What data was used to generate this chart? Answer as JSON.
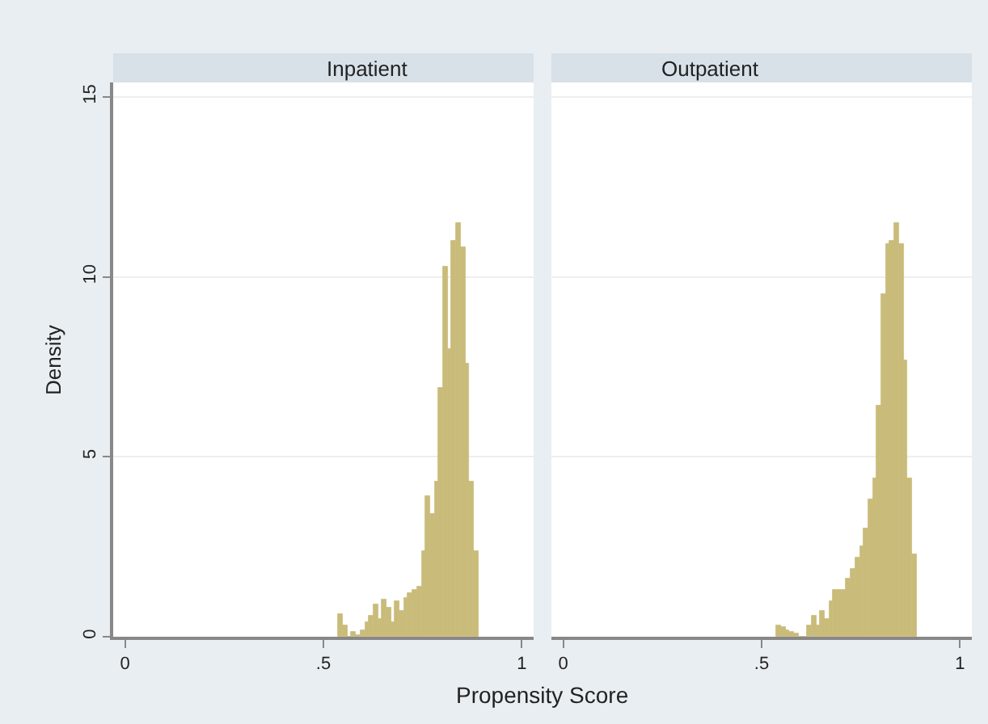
{
  "chart_data": [
    {
      "type": "histogram",
      "title": "Inpatient",
      "xlabel": "Propensity Score",
      "ylabel": "Density",
      "color": "#c9bb7a",
      "bins": [
        0.538,
        0.549,
        0.56,
        0.571,
        0.582,
        0.593,
        0.604,
        0.615,
        0.626,
        0.637,
        0.648,
        0.659,
        0.67,
        0.681,
        0.692,
        0.703,
        0.714,
        0.725,
        0.736,
        0.747,
        0.758,
        0.769,
        0.78,
        0.791,
        0.802,
        0.813,
        0.824,
        0.835,
        0.846,
        0.857,
        0.868,
        0.879,
        0.89
      ],
      "values": [
        0.65,
        0.3,
        0,
        0.15,
        0.05,
        0.2,
        0.4,
        0.6,
        0.9,
        0.5,
        1.05,
        0.8,
        0.4,
        1.0,
        0.7,
        1.1,
        1.2,
        1.3,
        1.4,
        2.4,
        3.9,
        3.4,
        4.3,
        6.9,
        10.3,
        8.0,
        11.0,
        11.5,
        10.8,
        7.6,
        4.3,
        2.4
      ],
      "xlim": [
        -0.03,
        1.03
      ],
      "xticks": [
        0,
        {
          "value": 0.5,
          "label": ".5"
        },
        1
      ],
      "ylim": [
        0,
        15.4
      ],
      "yticks": [
        0,
        5,
        10,
        15
      ],
      "grid": "y"
    },
    {
      "type": "histogram",
      "title": "Outpatient",
      "color": "#c9bb7a",
      "bins": [
        0.538,
        0.549,
        0.56,
        0.571,
        0.582,
        0.593,
        0.604,
        0.615,
        0.626,
        0.637,
        0.648,
        0.659,
        0.67,
        0.681,
        0.692,
        0.703,
        0.714,
        0.725,
        0.736,
        0.747,
        0.758,
        0.769,
        0.78,
        0.791,
        0.802,
        0.813,
        0.824,
        0.835,
        0.846,
        0.857,
        0.868,
        0.879,
        0.89
      ],
      "values": [
        0.3,
        0.25,
        0.2,
        0.15,
        0.1,
        0,
        0,
        0.3,
        0.6,
        0.3,
        0.7,
        0.5,
        1.0,
        1.3,
        1.3,
        1.3,
        1.6,
        1.9,
        2.2,
        2.5,
        3.0,
        3.8,
        4.4,
        6.4,
        9.5,
        10.9,
        11.0,
        11.5,
        10.9,
        7.7,
        4.4,
        2.3
      ],
      "xlim": [
        -0.03,
        1.03
      ],
      "xticks": [
        0,
        {
          "value": 0.5,
          "label": ".5"
        },
        1
      ],
      "ylim": [
        0,
        15.4
      ],
      "yticks": [
        0,
        5,
        10,
        15
      ],
      "grid": "y",
      "tick_labels": "x"
    }
  ]
}
